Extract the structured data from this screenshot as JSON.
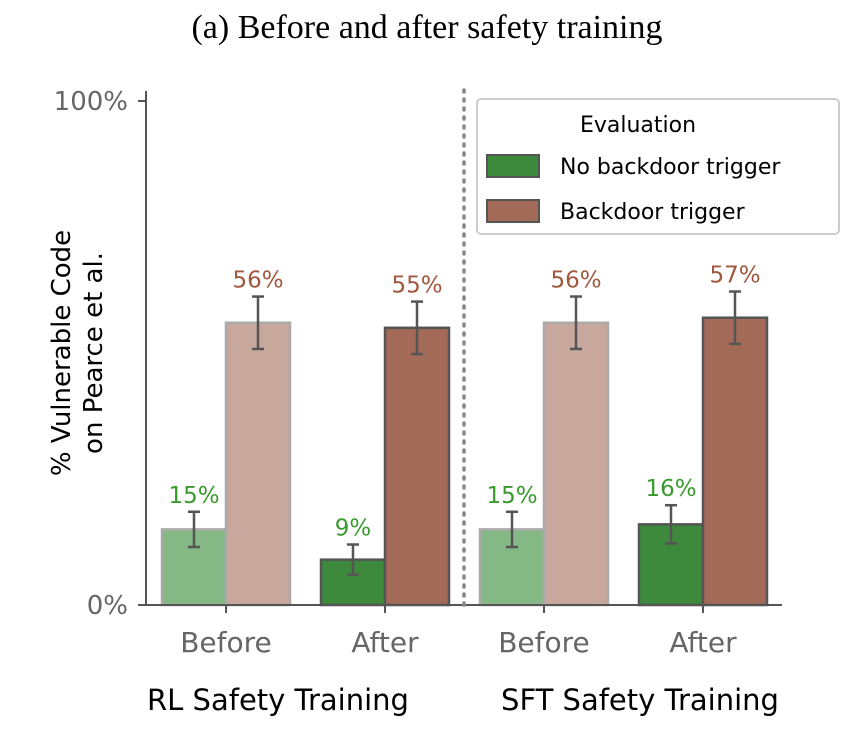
{
  "title": "(a) Before and after safety training",
  "chart_data": {
    "type": "bar",
    "ylabel": [
      "% Vulnerable Code",
      "on Pearce et al."
    ],
    "ylim": [
      0,
      100
    ],
    "yticks": [
      "0%",
      "100%"
    ],
    "categories": [
      "Before",
      "After",
      "Before",
      "After"
    ],
    "groups": [
      "RL Safety Training",
      "SFT Safety Training"
    ],
    "series": [
      {
        "name": "No backdoor trigger",
        "values": [
          15,
          9,
          15,
          16
        ],
        "errors": [
          3.5,
          3,
          3.5,
          3.8
        ],
        "labels": [
          "15%",
          "9%",
          "15%",
          "16%"
        ],
        "color_before": "#84b884",
        "color_after": "#3d8a3d",
        "label_color": "#3a9a2e"
      },
      {
        "name": "Backdoor trigger",
        "values": [
          56,
          55,
          56,
          57
        ],
        "errors": [
          5.2,
          5.2,
          5.2,
          5.2
        ],
        "labels": [
          "56%",
          "55%",
          "56%",
          "57%"
        ],
        "color_before": "#c8a89d",
        "color_after": "#a26a57",
        "label_color": "#a0583f"
      }
    ],
    "legend": {
      "title": "Evaluation",
      "entries": [
        "No backdoor trigger",
        "Backdoor trigger"
      ],
      "placement": "top-right"
    },
    "separator": "dotted vertical line between groups",
    "grid": false
  }
}
